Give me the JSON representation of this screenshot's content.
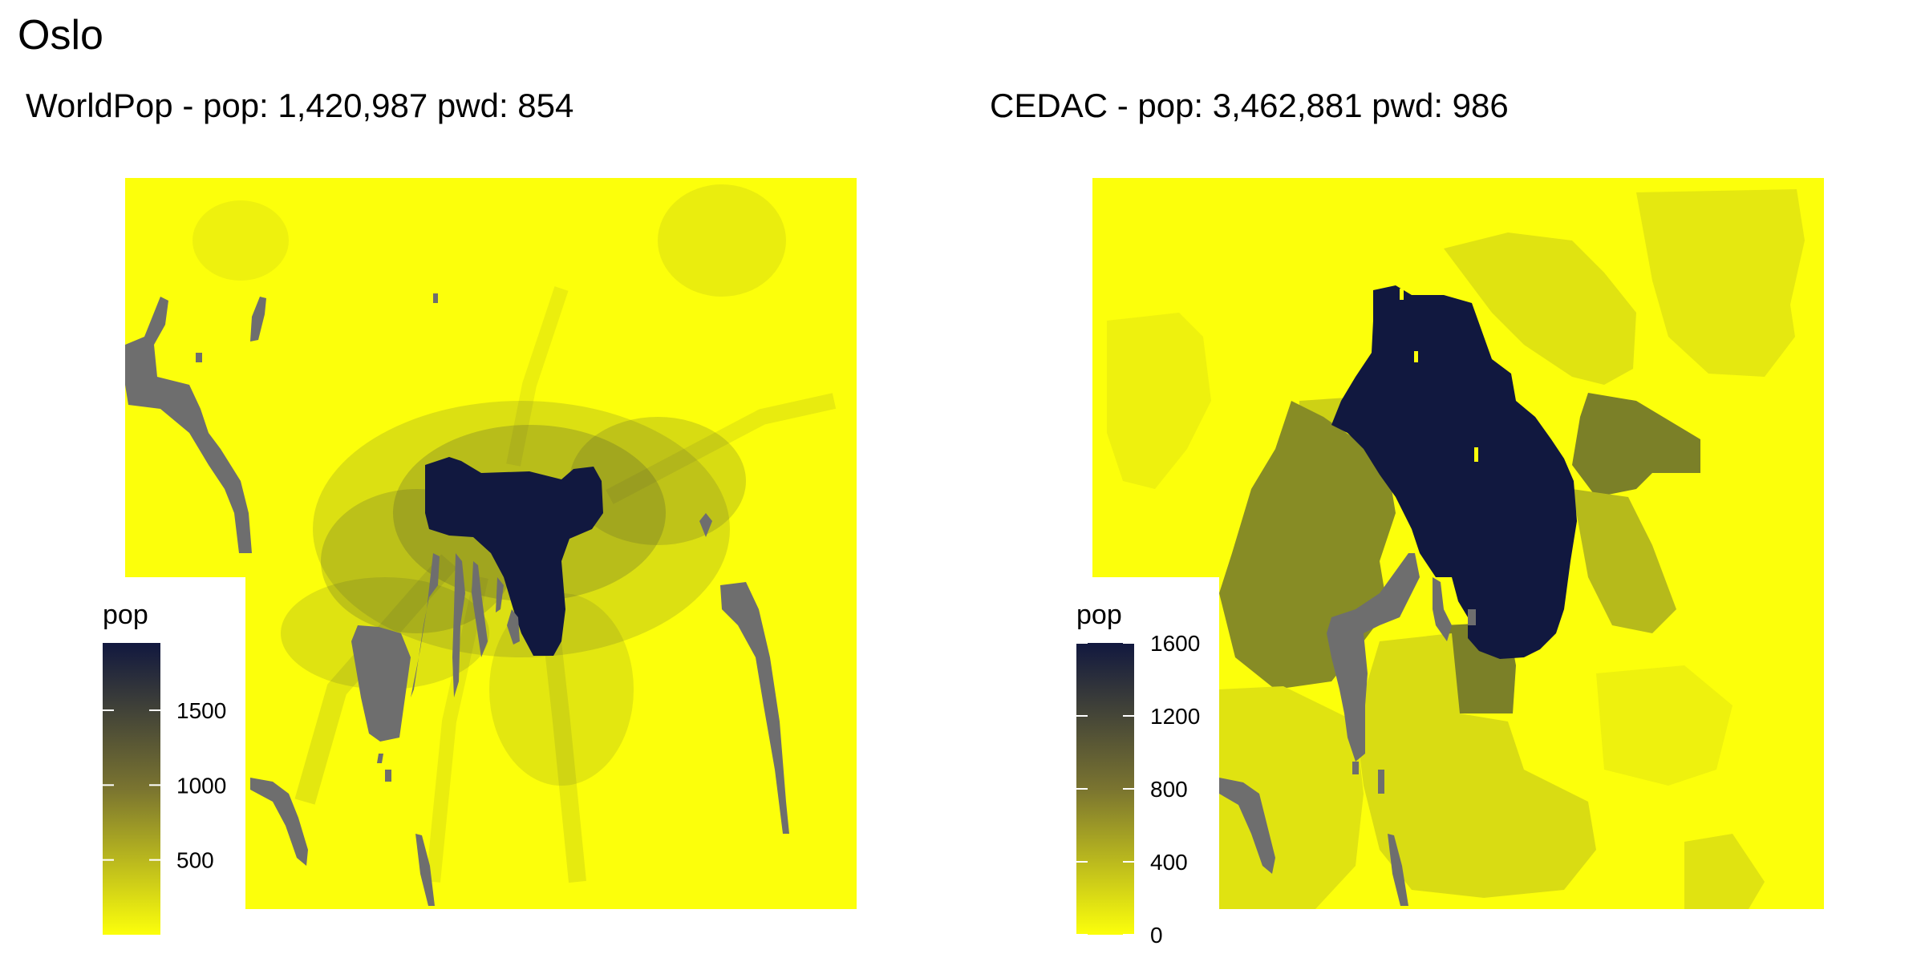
{
  "title": "Oslo",
  "colors": {
    "low": "#fcff0b",
    "high": "#11183f",
    "water": "#6e6e6e",
    "background": "#ffffff",
    "legend_tick": "#ffffff"
  },
  "panels": [
    {
      "id": "worldpop",
      "title": "WorldPop - pop: 1,420,987 pwd: 854",
      "source": "WorldPop",
      "total_pop": "1,420,987",
      "pwd": "854",
      "legend": {
        "title": "pop",
        "range": [
          0,
          1950
        ],
        "breaks": [
          500,
          1000,
          1500
        ],
        "labels": [
          "500",
          "1000",
          "1500"
        ]
      },
      "pattern": "diffuse urban core with radiating settlement corridors"
    },
    {
      "id": "cedac",
      "title": "CEDAC - pop: 3,462,881 pwd: 986",
      "source": "CEDAC",
      "total_pop": "3,462,881",
      "pwd": "986",
      "legend": {
        "title": "pop",
        "range": [
          0,
          1600
        ],
        "breaks": [
          0,
          400,
          800,
          1200,
          1600
        ],
        "labels": [
          "0",
          "400",
          "800",
          "1200",
          "1600"
        ]
      },
      "pattern": "municipality-level blocks with a single high-density core"
    }
  ]
}
